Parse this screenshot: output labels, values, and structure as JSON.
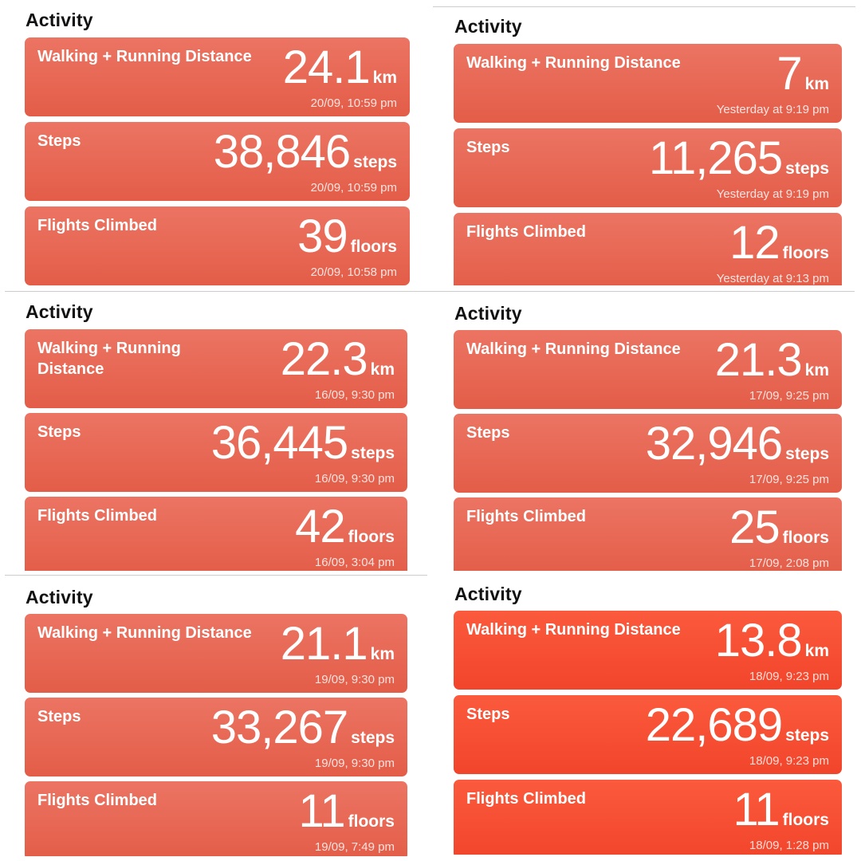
{
  "panels": [
    {
      "heading": "Activity",
      "cards": [
        {
          "label": "Walking + Running Distance",
          "value": "24.1",
          "unit": "km",
          "timestamp": "20/09, 10:59 pm"
        },
        {
          "label": "Steps",
          "value": "38,846",
          "unit": "steps",
          "timestamp": "20/09, 10:59 pm"
        },
        {
          "label": "Flights Climbed",
          "value": "39",
          "unit": "floors",
          "timestamp": "20/09, 10:58 pm"
        }
      ]
    },
    {
      "heading": "Activity",
      "cards": [
        {
          "label": "Walking + Running Distance",
          "value": "7",
          "unit": "km",
          "timestamp": "Yesterday at 9:19 pm"
        },
        {
          "label": "Steps",
          "value": "11,265",
          "unit": "steps",
          "timestamp": "Yesterday at 9:19 pm"
        },
        {
          "label": "Flights Climbed",
          "value": "12",
          "unit": "floors",
          "timestamp": "Yesterday at 9:13 pm"
        }
      ]
    },
    {
      "heading": "Activity",
      "cards": [
        {
          "label": "Walking + Running Distance",
          "value": "22.3",
          "unit": "km",
          "timestamp": "16/09, 9:30 pm"
        },
        {
          "label": "Steps",
          "value": "36,445",
          "unit": "steps",
          "timestamp": "16/09, 9:30 pm"
        },
        {
          "label": "Flights Climbed",
          "value": "42",
          "unit": "floors",
          "timestamp": "16/09, 3:04 pm"
        }
      ]
    },
    {
      "heading": "Activity",
      "cards": [
        {
          "label": "Walking + Running Distance",
          "value": "21.3",
          "unit": "km",
          "timestamp": "17/09, 9:25 pm"
        },
        {
          "label": "Steps",
          "value": "32,946",
          "unit": "steps",
          "timestamp": "17/09, 9:25 pm"
        },
        {
          "label": "Flights Climbed",
          "value": "25",
          "unit": "floors",
          "timestamp": "17/09, 2:08 pm"
        }
      ]
    },
    {
      "heading": "Activity",
      "cards": [
        {
          "label": "Walking + Running Distance",
          "value": "21.1",
          "unit": "km",
          "timestamp": "19/09, 9:30 pm"
        },
        {
          "label": "Steps",
          "value": "33,267",
          "unit": "steps",
          "timestamp": "19/09, 9:30 pm"
        },
        {
          "label": "Flights Climbed",
          "value": "11",
          "unit": "floors",
          "timestamp": "19/09, 7:49 pm"
        }
      ]
    },
    {
      "heading": "Activity",
      "cards": [
        {
          "label": "Walking + Running Distance",
          "value": "13.8",
          "unit": "km",
          "timestamp": "18/09, 9:23 pm"
        },
        {
          "label": "Steps",
          "value": "22,689",
          "unit": "steps",
          "timestamp": "18/09, 9:23 pm"
        },
        {
          "label": "Flights Climbed",
          "value": "11",
          "unit": "floors",
          "timestamp": "18/09, 1:28 pm"
        }
      ]
    }
  ],
  "colors": {
    "card_top": "#ec7463",
    "card_bottom": "#e35d48",
    "card_bright_top": "#fb5a3d",
    "card_bright_bottom": "#f2452b"
  }
}
